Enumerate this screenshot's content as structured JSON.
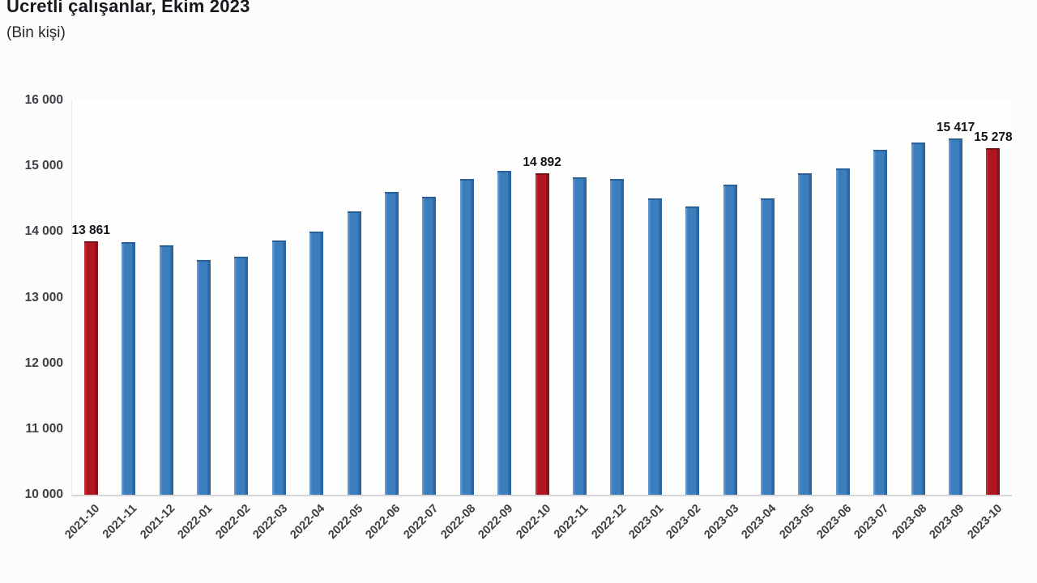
{
  "header": {
    "title": "Ücretli çalışanlar, Ekim 2023",
    "subtitle": "(Bin kişi)"
  },
  "chart_data": {
    "type": "bar",
    "title": "Ücretli çalışanlar, Ekim 2023",
    "subtitle": "(Bin kişi)",
    "unit": "Bin kişi",
    "categories": [
      "2021-10",
      "2021-11",
      "2021-12",
      "2022-01",
      "2022-02",
      "2022-03",
      "2022-04",
      "2022-05",
      "2022-06",
      "2022-07",
      "2022-08",
      "2022-09",
      "2022-10",
      "2022-11",
      "2022-12",
      "2023-01",
      "2023-02",
      "2023-03",
      "2023-04",
      "2023-05",
      "2023-06",
      "2023-07",
      "2023-08",
      "2023-09",
      "2023-10"
    ],
    "values": [
      13861,
      13845,
      13795,
      13570,
      13620,
      13865,
      14000,
      14310,
      14610,
      14535,
      14800,
      14925,
      14892,
      14835,
      14800,
      14505,
      14390,
      14720,
      14510,
      14890,
      14970,
      15250,
      15360,
      15417,
      15278
    ],
    "highlight_indices": [
      0,
      12,
      24
    ],
    "point_labels": {
      "0": "13 861",
      "12": "14 892",
      "23": "15 417",
      "24": "15 278"
    },
    "ylim": [
      10000,
      16000
    ],
    "yticks": [
      {
        "value": 16000,
        "label": "16 000"
      },
      {
        "value": 15000,
        "label": "15 000"
      },
      {
        "value": 14000,
        "label": "14 000"
      },
      {
        "value": 13000,
        "label": "13 000"
      },
      {
        "value": 12000,
        "label": "12 000"
      },
      {
        "value": 11000,
        "label": "11 000"
      },
      {
        "value": 10000,
        "label": "10 000"
      }
    ],
    "grid": false,
    "legend": "none",
    "bar_color": "#3b7ebd",
    "highlight_color": "#b0161f",
    "axis_line_color": "#d6d6d6",
    "xlabel": "",
    "ylabel": ""
  }
}
